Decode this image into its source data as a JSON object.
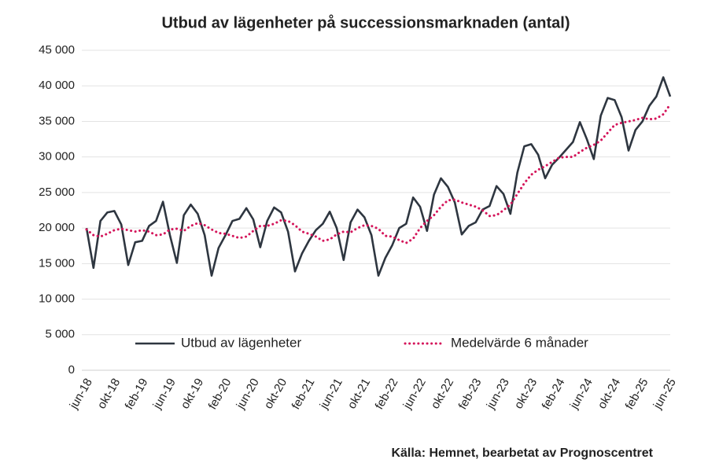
{
  "chart_data": {
    "type": "line",
    "title": "Utbud av lägenheter på successionsmarknaden (antal)",
    "source": "Källa: Hemnet, bearbetat av Prognoscentret",
    "categories": [
      "jun-18",
      null,
      null,
      null,
      "okt-18",
      null,
      null,
      null,
      "feb-19",
      null,
      null,
      null,
      "jun-19",
      null,
      null,
      null,
      "okt-19",
      null,
      null,
      null,
      "feb-20",
      null,
      null,
      null,
      "jun-20",
      null,
      null,
      null,
      "okt-20",
      null,
      null,
      null,
      "feb-21",
      null,
      null,
      null,
      "jun-21",
      null,
      null,
      null,
      "okt-21",
      null,
      null,
      null,
      "feb-22",
      null,
      null,
      null,
      "jun-22",
      null,
      null,
      null,
      "okt-22",
      null,
      null,
      null,
      "feb-23",
      null,
      null,
      null,
      "jun-23",
      null,
      null,
      null,
      "okt-23",
      null,
      null,
      null,
      "feb-24",
      null,
      null,
      null,
      "jun-24",
      null,
      null,
      null,
      "okt-24",
      null,
      null,
      null,
      "feb-25",
      null,
      null,
      null,
      "jun-25"
    ],
    "series": [
      {
        "name": "Utbud av lägenheter",
        "color": "#2e3640",
        "style": "solid",
        "values": [
          20000,
          14400,
          21000,
          22200,
          22400,
          20500,
          14800,
          18000,
          18200,
          20300,
          21000,
          23700,
          19000,
          15100,
          21800,
          23300,
          22000,
          19000,
          13300,
          17200,
          19000,
          21000,
          21300,
          22800,
          21200,
          17300,
          21000,
          22900,
          22200,
          19500,
          13900,
          16400,
          18200,
          19700,
          20600,
          22300,
          20000,
          15500,
          20800,
          22600,
          21500,
          19000,
          13300,
          15800,
          17600,
          20000,
          20600,
          24300,
          23000,
          19600,
          24700,
          27000,
          25800,
          23600,
          19100,
          20300,
          20800,
          22600,
          23100,
          25900,
          24800,
          22000,
          27800,
          31500,
          31800,
          30300,
          27000,
          28900,
          29900,
          31000,
          32100,
          34900,
          32500,
          29700,
          35800,
          38300,
          38000,
          35600,
          30900,
          33800,
          35000,
          37200,
          38500,
          41200,
          38500
        ]
      },
      {
        "name": "Medelvärde 6 månader",
        "color": "#d4145a",
        "style": "dotted",
        "values": [
          19800,
          19000,
          18800,
          19200,
          19700,
          19900,
          19700,
          19500,
          19700,
          19500,
          19000,
          19100,
          19800,
          19900,
          19600,
          20300,
          20700,
          20400,
          19800,
          19300,
          19200,
          18900,
          18600,
          18800,
          19600,
          20300,
          20300,
          20600,
          21100,
          21000,
          20400,
          19500,
          19200,
          18800,
          18200,
          18400,
          19100,
          19500,
          19400,
          20000,
          20400,
          20300,
          19900,
          18900,
          18800,
          18300,
          17900,
          18500,
          20000,
          21000,
          21800,
          23000,
          23900,
          24000,
          23600,
          23300,
          23000,
          22500,
          21700,
          21800,
          22500,
          23300,
          24800,
          26300,
          27500,
          28200,
          28700,
          29300,
          29900,
          30000,
          30000,
          30700,
          31300,
          31700,
          32300,
          33400,
          34500,
          34800,
          35000,
          35200,
          35500,
          35300,
          35400,
          36000,
          37400
        ]
      }
    ],
    "ylim": [
      0,
      45000
    ],
    "yticks": [
      0,
      {
        "value": 5000,
        "label": "5 000"
      },
      {
        "value": 10000,
        "label": "10 000"
      },
      {
        "value": 15000,
        "label": "15 000"
      },
      {
        "value": 20000,
        "label": "20 000"
      },
      {
        "value": 25000,
        "label": "25 000"
      },
      {
        "value": 30000,
        "label": "30 000"
      },
      {
        "value": 35000,
        "label": "35 000"
      },
      {
        "value": 40000,
        "label": "40 000"
      },
      {
        "value": 45000,
        "label": "45 000"
      }
    ],
    "grid": true
  }
}
